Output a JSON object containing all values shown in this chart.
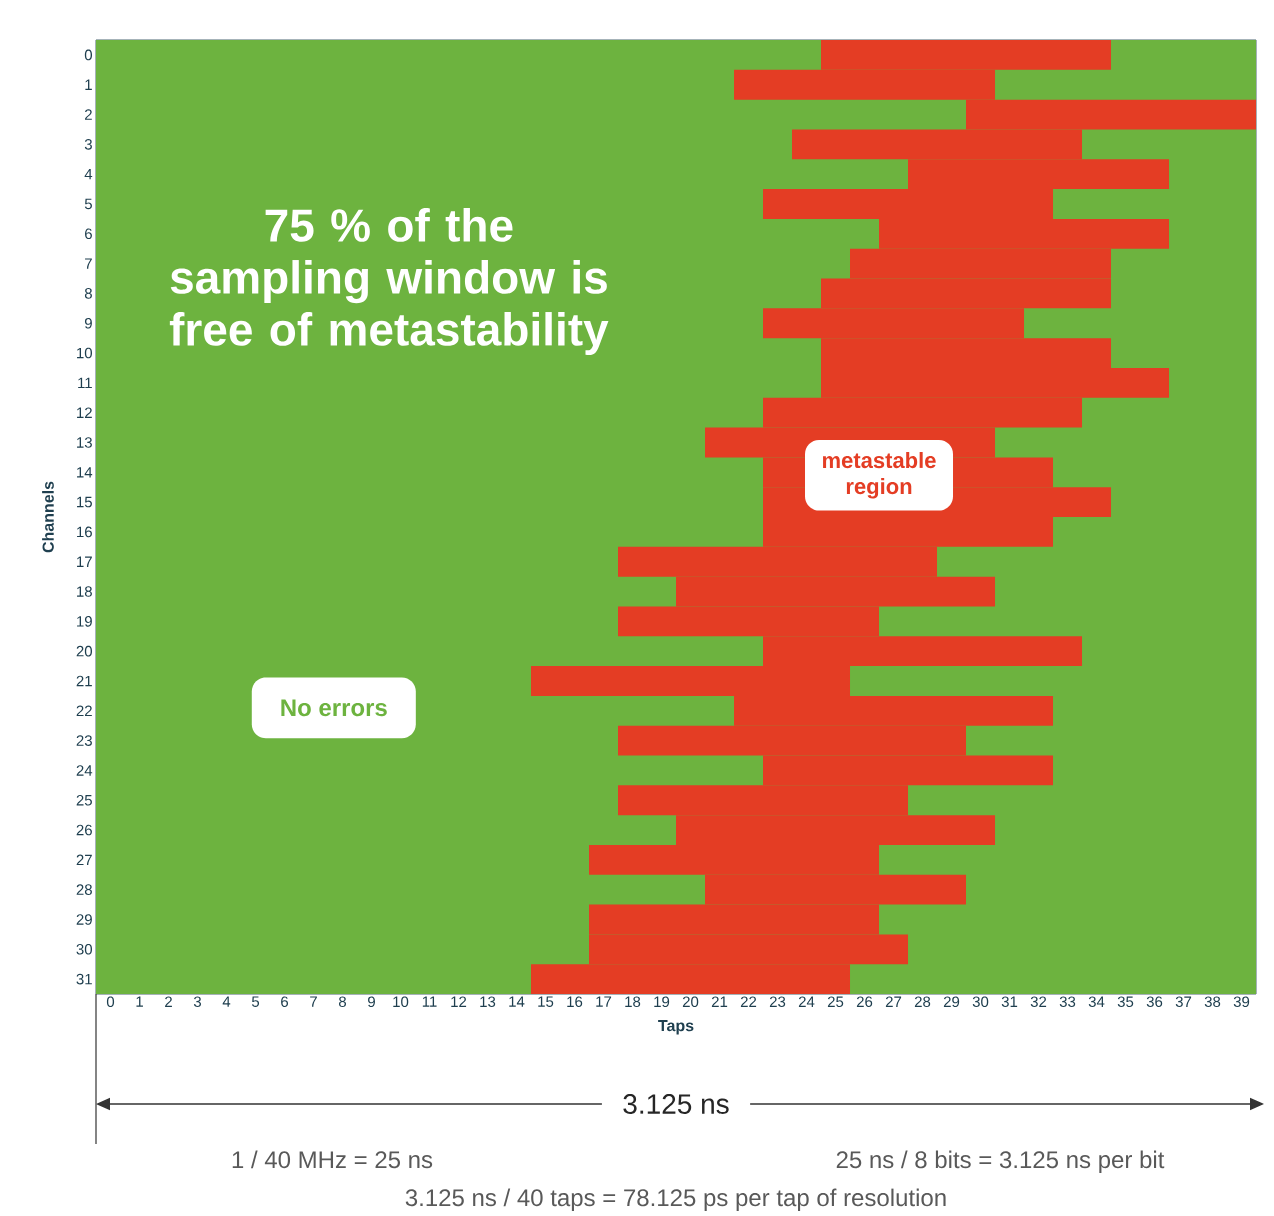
{
  "chart_data": {
    "type": "bar",
    "orientation": "horizontal",
    "xlabel": "Taps",
    "ylabel": "Channels",
    "categories": [
      "0",
      "1",
      "2",
      "3",
      "4",
      "5",
      "6",
      "7",
      "8",
      "9",
      "10",
      "11",
      "12",
      "13",
      "14",
      "15",
      "16",
      "17",
      "18",
      "19",
      "20",
      "21",
      "22",
      "23",
      "24",
      "25",
      "26",
      "27",
      "28",
      "29",
      "30",
      "31"
    ],
    "xlim": [
      -0.5,
      39.5
    ],
    "xticks": [
      0,
      1,
      2,
      3,
      4,
      5,
      6,
      7,
      8,
      9,
      10,
      11,
      12,
      13,
      14,
      15,
      16,
      17,
      18,
      19,
      20,
      21,
      22,
      23,
      24,
      25,
      26,
      27,
      28,
      29,
      30,
      31,
      32,
      33,
      34,
      35,
      36,
      37,
      38,
      39
    ],
    "series": [
      {
        "name": "metastable region",
        "color": "#e43d24",
        "base": [
          24.5,
          21.5,
          29.5,
          23.5,
          27.5,
          22.5,
          26.5,
          25.5,
          24.5,
          22.5,
          24.5,
          24.5,
          22.5,
          20.5,
          22.5,
          22.5,
          22.5,
          17.5,
          19.5,
          17.5,
          22.5,
          14.5,
          21.5,
          17.5,
          22.5,
          17.5,
          19.5,
          16.5,
          20.5,
          16.5,
          16.5,
          14.5
        ],
        "values": [
          10,
          9,
          10,
          10,
          9,
          10,
          10,
          9,
          10,
          9,
          10,
          12,
          11,
          10,
          10,
          12,
          10,
          11,
          11,
          9,
          11,
          11,
          11,
          12,
          10,
          10,
          11,
          10,
          9,
          10,
          11,
          11
        ]
      }
    ],
    "bands": [
      {
        "axis": "x",
        "from": -0.5,
        "to": 39.5,
        "label": "No errors",
        "color": "#6db33f"
      }
    ],
    "annotations": [
      "75 % of the sampling window is free of metastability",
      "3.125 ns",
      "1 / 40 MHz = 25 ns",
      "25 ns / 8 bits = 3.125 ns per bit",
      "3.125 ns / 40 taps = 78.125 ps per tap of resolution"
    ]
  }
}
